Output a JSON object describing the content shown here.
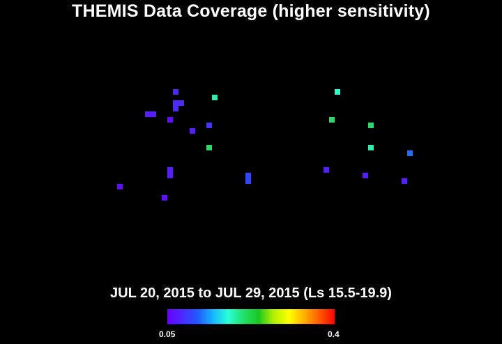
{
  "title": "THEMIS Data Coverage (higher sensitivity)",
  "subtitle": "JUL 20, 2015 to JUL 29, 2015 (Ls 15.5-19.9)",
  "colorbar": {
    "min_label": "0.05",
    "max_label": "0.4",
    "stops": [
      "#6a00ff",
      "#4a2bff",
      "#1f5bff",
      "#14b8ff",
      "#2affd6",
      "#22e06a",
      "#1ac820",
      "#b8f000",
      "#ffff00",
      "#ffb000",
      "#ff5a00",
      "#ff0000"
    ]
  },
  "chart_data": {
    "type": "heatmap",
    "value_range": [
      0.05,
      0.4
    ],
    "cells": [
      {
        "col": 31,
        "row": 16,
        "value": 0.08
      },
      {
        "col": 38,
        "row": 17,
        "value": 0.19
      },
      {
        "col": 60,
        "row": 16,
        "value": 0.18
      },
      {
        "col": 31,
        "row": 18,
        "value": 0.08
      },
      {
        "col": 32,
        "row": 18,
        "value": 0.08
      },
      {
        "col": 31,
        "row": 19,
        "value": 0.08
      },
      {
        "col": 26,
        "row": 20,
        "value": 0.07
      },
      {
        "col": 27,
        "row": 20,
        "value": 0.07
      },
      {
        "col": 30,
        "row": 21,
        "value": 0.06
      },
      {
        "col": 59,
        "row": 21,
        "value": 0.21
      },
      {
        "col": 37,
        "row": 22,
        "value": 0.09
      },
      {
        "col": 66,
        "row": 22,
        "value": 0.21
      },
      {
        "col": 34,
        "row": 23,
        "value": 0.07
      },
      {
        "col": 37,
        "row": 26,
        "value": 0.21
      },
      {
        "col": 66,
        "row": 26,
        "value": 0.19
      },
      {
        "col": 73,
        "row": 27,
        "value": 0.12
      },
      {
        "col": 30,
        "row": 30,
        "value": 0.07
      },
      {
        "col": 58,
        "row": 30,
        "value": 0.07
      },
      {
        "col": 30,
        "row": 31,
        "value": 0.07
      },
      {
        "col": 44,
        "row": 31,
        "value": 0.1
      },
      {
        "col": 65,
        "row": 31,
        "value": 0.07
      },
      {
        "col": 44,
        "row": 32,
        "value": 0.1
      },
      {
        "col": 72,
        "row": 32,
        "value": 0.07
      },
      {
        "col": 21,
        "row": 33,
        "value": 0.06
      },
      {
        "col": 29,
        "row": 35,
        "value": 0.06
      }
    ]
  }
}
